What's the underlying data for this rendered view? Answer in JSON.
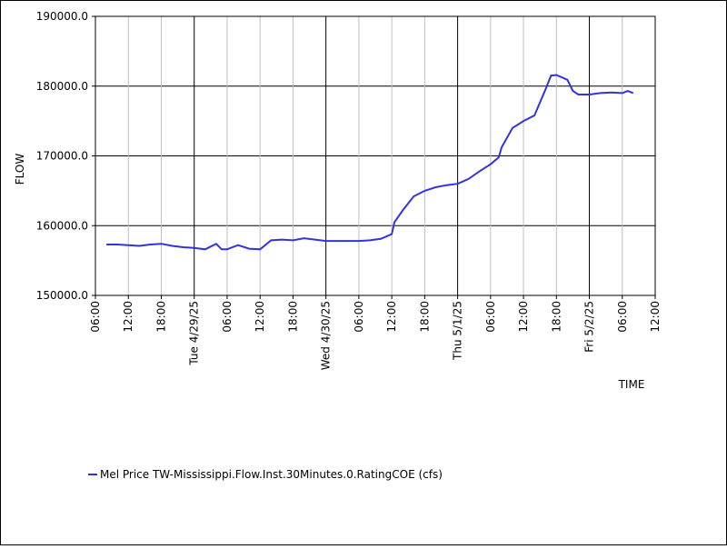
{
  "chart_data": {
    "type": "line",
    "x_label": "TIME",
    "y_label": "FLOW",
    "x": [
      "2025-04-28T08:00",
      "2025-04-28T10:00",
      "2025-04-28T12:00",
      "2025-04-28T14:00",
      "2025-04-28T16:00",
      "2025-04-28T18:00",
      "2025-04-28T20:00",
      "2025-04-28T22:00",
      "2025-04-29T00:00",
      "2025-04-29T02:00",
      "2025-04-29T04:00",
      "2025-04-29T05:00",
      "2025-04-29T06:00",
      "2025-04-29T08:00",
      "2025-04-29T10:00",
      "2025-04-29T12:00",
      "2025-04-29T14:00",
      "2025-04-29T16:00",
      "2025-04-29T18:00",
      "2025-04-29T20:00",
      "2025-04-29T22:00",
      "2025-04-30T00:00",
      "2025-04-30T02:00",
      "2025-04-30T04:00",
      "2025-04-30T06:00",
      "2025-04-30T08:00",
      "2025-04-30T10:00",
      "2025-04-30T12:00",
      "2025-04-30T12:30",
      "2025-04-30T14:00",
      "2025-04-30T16:00",
      "2025-04-30T18:00",
      "2025-04-30T20:00",
      "2025-04-30T22:00",
      "2025-05-01T00:00",
      "2025-05-01T02:00",
      "2025-05-01T04:00",
      "2025-05-01T06:00",
      "2025-05-01T07:30",
      "2025-05-01T08:00",
      "2025-05-01T10:00",
      "2025-05-01T12:00",
      "2025-05-01T14:00",
      "2025-05-01T16:00",
      "2025-05-01T17:00",
      "2025-05-01T18:00",
      "2025-05-01T20:00",
      "2025-05-01T21:00",
      "2025-05-01T22:00",
      "2025-05-02T00:00",
      "2025-05-02T02:00",
      "2025-05-02T04:00",
      "2025-05-02T06:00",
      "2025-05-02T07:00",
      "2025-05-02T08:00"
    ],
    "series": [
      {
        "name": "Mel Price TW-Mississippi.Flow.Inst.30Minutes.0.RatingCOE (cfs)",
        "color": "#3333dd",
        "values": [
          157300,
          157300,
          157200,
          157100,
          157300,
          157400,
          157100,
          156900,
          156800,
          156600,
          157400,
          156600,
          156600,
          157200,
          156700,
          156600,
          157900,
          158000,
          157900,
          158200,
          158000,
          157800,
          157800,
          157800,
          157800,
          157900,
          158100,
          158800,
          160500,
          162200,
          164200,
          165000,
          165500,
          165800,
          166000,
          166700,
          167800,
          168800,
          169800,
          171200,
          174000,
          175000,
          175800,
          179500,
          181500,
          181600,
          180900,
          179300,
          178800,
          178800,
          179000,
          179100,
          179000,
          179300,
          179000
        ]
      }
    ],
    "xlim": [
      "2025-04-28T06:00",
      "2025-05-02T12:00"
    ],
    "xticks": [
      {
        "value": "2025-04-28T06:00",
        "label": "06:00"
      },
      {
        "value": "2025-04-28T12:00",
        "label": "12:00"
      },
      {
        "value": "2025-04-28T18:00",
        "label": "18:00"
      },
      {
        "value": "2025-04-29T00:00",
        "label": "Tue 4/29/25"
      },
      {
        "value": "2025-04-29T06:00",
        "label": "06:00"
      },
      {
        "value": "2025-04-29T12:00",
        "label": "12:00"
      },
      {
        "value": "2025-04-29T18:00",
        "label": "18:00"
      },
      {
        "value": "2025-04-30T00:00",
        "label": "Wed 4/30/25"
      },
      {
        "value": "2025-04-30T06:00",
        "label": "06:00"
      },
      {
        "value": "2025-04-30T12:00",
        "label": "12:00"
      },
      {
        "value": "2025-04-30T18:00",
        "label": "18:00"
      },
      {
        "value": "2025-05-01T00:00",
        "label": "Thu 5/1/25"
      },
      {
        "value": "2025-05-01T06:00",
        "label": "06:00"
      },
      {
        "value": "2025-05-01T12:00",
        "label": "12:00"
      },
      {
        "value": "2025-05-01T18:00",
        "label": "18:00"
      },
      {
        "value": "2025-05-02T00:00",
        "label": "Fri 5/2/25"
      },
      {
        "value": "2025-05-02T06:00",
        "label": "06:00"
      },
      {
        "value": "2025-05-02T12:00",
        "label": "12:00"
      }
    ],
    "ylim": [
      150000,
      190000
    ],
    "yticks": [
      {
        "value": 150000,
        "label": "150000.0"
      },
      {
        "value": 160000,
        "label": "160000.0"
      },
      {
        "value": 170000,
        "label": "170000.0"
      },
      {
        "value": 180000,
        "label": "180000.0"
      },
      {
        "value": 190000,
        "label": "190000.0"
      }
    ],
    "grid": true,
    "legend": "bottom-left"
  }
}
